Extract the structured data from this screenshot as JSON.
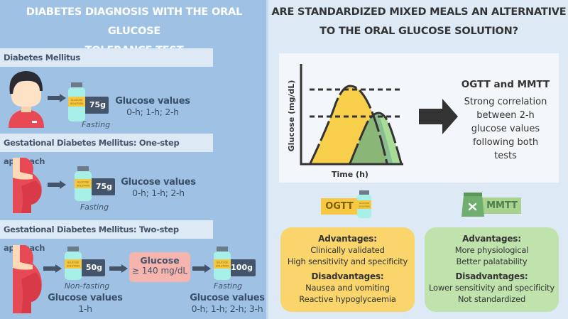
{
  "left": {
    "title_line1": "DIABETES DIAGNOSIS WITH THE ORAL GLUCOSE",
    "title_line2": "TOLERANCE TEST",
    "sections": [
      {
        "heading": "Diabetes Mellitus",
        "dose": "75g",
        "condition": "Fasting",
        "values_label": "Glucose values",
        "values": "0-h; 1-h; 2-h"
      },
      {
        "heading": "Gestational Diabetes Mellitus: One-step approach",
        "dose": "75g",
        "condition": "Fasting",
        "values_label": "Glucose values",
        "values": "0-h; 1-h; 2-h"
      },
      {
        "heading": "Gestational Diabetes Mellitus: Two-step approach",
        "step1": {
          "dose": "50g",
          "condition": "Non-fasting",
          "values_label": "Glucose values",
          "values": "1-h"
        },
        "threshold": {
          "label": "Glucose",
          "value": "≥ 140 mg/dL"
        },
        "step2": {
          "dose": "100g",
          "condition": "Fasting",
          "values_label": "Glucose values",
          "values": "0-h; 1-h; 2-h; 3-h"
        }
      }
    ],
    "bottle_label_1": "GLUCOSE",
    "bottle_label_2": "SOLUTION"
  },
  "right": {
    "title_line1": "ARE STANDARDIZED MIXED MEALS AN ALTERNATIVE",
    "title_line2": "TO THE ORAL GLUCOSE SOLUTION?",
    "chart": {
      "ylabel": "Glucose (mg/dL)",
      "xlabel": "Time (h)"
    },
    "conclusion": {
      "heading": "OGTT and MMTT",
      "lines": [
        "Strong correlation",
        "between 2-h",
        "glucose values",
        "following both",
        "tests"
      ]
    },
    "ogtt": {
      "label": "OGTT",
      "advantages_label": "Advantages:",
      "advantages": [
        "Clinically validated",
        "High sensitivity and specificity"
      ],
      "disadvantages_label": "Disadvantages:",
      "disadvantages": [
        "Nausea and vomiting",
        "Reactive hypoglycaemia"
      ]
    },
    "mmtt": {
      "label": "MMTT",
      "advantages_label": "Advantages:",
      "advantages": [
        "More physiological",
        "Better palatability"
      ],
      "disadvantages_label": "Disadvantages:",
      "disadvantages": [
        "Lower sensitivity and specificity",
        "Not standardized"
      ]
    }
  },
  "colors": {
    "left_bg": "#9fc2e4",
    "right_bg": "#dde9f5",
    "ogtt": "#f9d56b",
    "mmtt": "#c0e3ae",
    "threshold": "#f5b5ae",
    "dark": "#44546a"
  }
}
